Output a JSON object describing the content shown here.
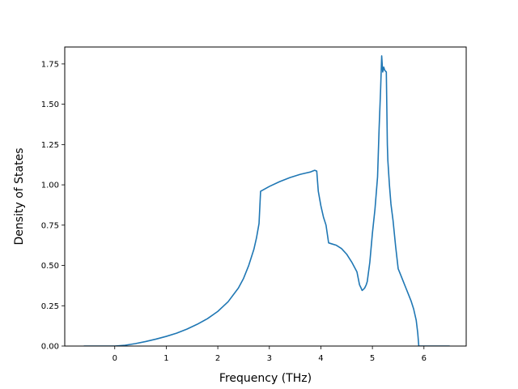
{
  "chart_data": {
    "type": "line",
    "title": "",
    "xlabel": "Frequency (THz)",
    "ylabel": "Density of States",
    "xlim": [
      -0.97,
      6.82
    ],
    "ylim": [
      0.0,
      1.855
    ],
    "xticks": [
      0,
      1,
      2,
      3,
      4,
      5,
      6
    ],
    "xtick_labels": [
      "0",
      "1",
      "2",
      "3",
      "4",
      "5",
      "6"
    ],
    "yticks": [
      0.0,
      0.25,
      0.5,
      0.75,
      1.0,
      1.25,
      1.5,
      1.75
    ],
    "ytick_labels": [
      "0.00",
      "0.25",
      "0.50",
      "0.75",
      "1.00",
      "1.25",
      "1.50",
      "1.75"
    ],
    "grid": false,
    "legend": "none",
    "series": [
      {
        "color": "#1f77b4",
        "x": [
          -0.6,
          -0.3,
          0.0,
          0.2,
          0.4,
          0.6,
          0.8,
          1.0,
          1.2,
          1.4,
          1.6,
          1.8,
          2.0,
          2.2,
          2.4,
          2.5,
          2.6,
          2.7,
          2.75,
          2.8,
          2.83,
          3.0,
          3.2,
          3.4,
          3.6,
          3.8,
          3.88,
          3.92,
          3.95,
          4.0,
          4.05,
          4.1,
          4.15,
          4.2,
          4.3,
          4.4,
          4.5,
          4.6,
          4.7,
          4.75,
          4.78,
          4.8,
          4.82,
          4.85,
          4.88,
          4.9,
          4.95,
          5.0,
          5.05,
          5.1,
          5.13,
          5.16,
          5.18,
          5.2,
          5.22,
          5.24,
          5.27,
          5.29,
          5.3,
          5.33,
          5.36,
          5.4,
          5.45,
          5.5,
          5.55,
          5.6,
          5.65,
          5.7,
          5.75,
          5.8,
          5.85,
          5.88,
          5.9,
          6.0,
          6.2,
          6.5
        ],
        "y": [
          0.0,
          0.0,
          0.0,
          0.005,
          0.015,
          0.028,
          0.043,
          0.06,
          0.08,
          0.105,
          0.135,
          0.17,
          0.215,
          0.275,
          0.36,
          0.42,
          0.5,
          0.6,
          0.67,
          0.76,
          0.96,
          0.99,
          1.02,
          1.045,
          1.065,
          1.08,
          1.09,
          1.085,
          0.96,
          0.87,
          0.8,
          0.75,
          0.64,
          0.635,
          0.625,
          0.605,
          0.57,
          0.52,
          0.46,
          0.38,
          0.36,
          0.345,
          0.35,
          0.36,
          0.38,
          0.4,
          0.52,
          0.7,
          0.85,
          1.05,
          1.35,
          1.6,
          1.8,
          1.7,
          1.73,
          1.71,
          1.7,
          1.25,
          1.15,
          1.0,
          0.88,
          0.78,
          0.62,
          0.48,
          0.44,
          0.4,
          0.36,
          0.32,
          0.28,
          0.23,
          0.16,
          0.08,
          0.0,
          0.0,
          0.0,
          0.0
        ]
      }
    ]
  }
}
